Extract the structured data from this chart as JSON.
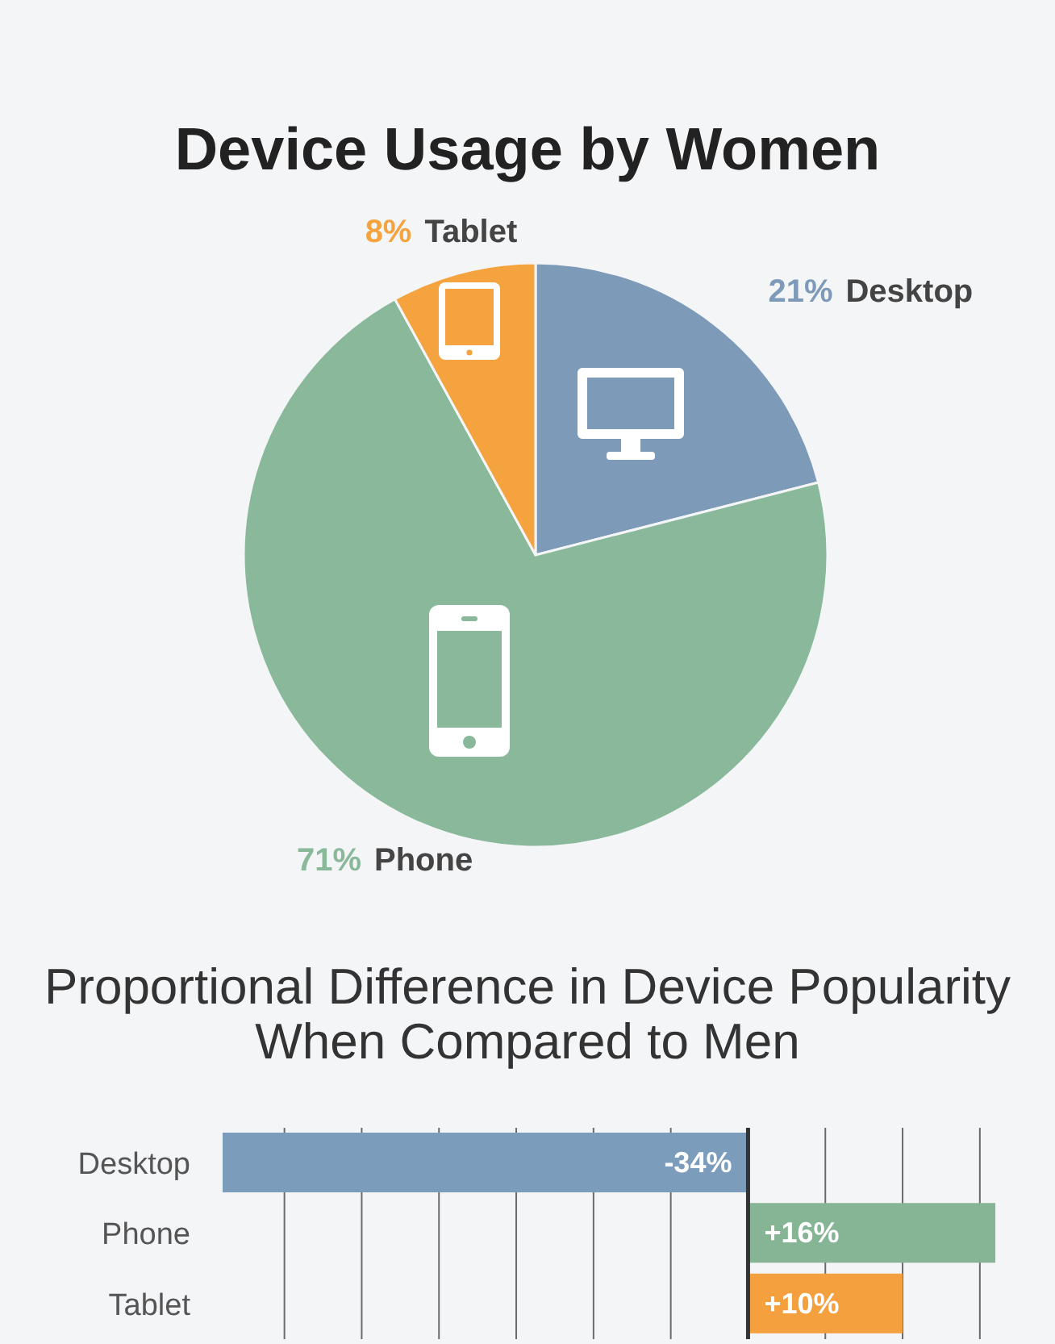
{
  "chart_data": [
    {
      "type": "pie",
      "title": "Device Usage by Women",
      "categories": [
        "Desktop",
        "Phone",
        "Tablet"
      ],
      "values": [
        21,
        71,
        8
      ],
      "colors": [
        "#7d9bb8",
        "#8ab89b",
        "#f5a33f"
      ],
      "value_labels": [
        "21%",
        "71%",
        "8%"
      ]
    },
    {
      "type": "bar",
      "orientation": "horizontal",
      "title": "Proportional Difference in Device Popularity When Compared to Men",
      "categories": [
        "Desktop",
        "Phone",
        "Tablet"
      ],
      "values": [
        -34,
        16,
        10
      ],
      "colors": [
        "#7b9cbb",
        "#86b596",
        "#f4a03e"
      ],
      "value_labels": [
        "-34%",
        "+16%",
        "+10%"
      ],
      "xticks": [
        {
          "value": -30,
          "label": null
        },
        {
          "value": -25,
          "label": null
        },
        {
          "value": -20,
          "label": null
        },
        {
          "value": -15,
          "label": null
        },
        {
          "value": -10,
          "label": null
        },
        {
          "value": -5,
          "label": null
        },
        {
          "value": 5,
          "label": null
        },
        {
          "value": 10,
          "label": null
        },
        {
          "value": 15,
          "label": null
        }
      ],
      "grid": "x",
      "tick_labels": "y",
      "ref_lines": [
        {
          "axis": "x",
          "value": 0,
          "color": "#333333"
        }
      ]
    }
  ]
}
